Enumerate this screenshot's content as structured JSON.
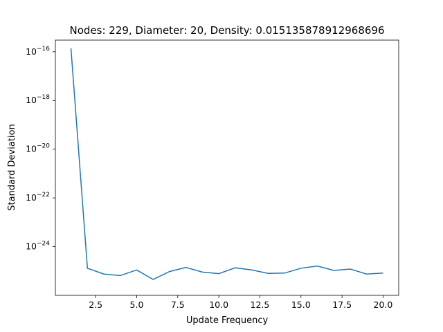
{
  "chart_data": {
    "type": "line",
    "title": "Nodes: 229, Diameter: 20, Density: 0.015135878912968696",
    "xlabel": "Update Frequency",
    "ylabel": "Standard Deviation",
    "x_scale": "linear",
    "y_scale": "log",
    "xlim": [
      0.05,
      20.95
    ],
    "ylim": [
      1e-26,
      3e-16
    ],
    "x_ticks": [
      2.5,
      5.0,
      7.5,
      10.0,
      12.5,
      15.0,
      17.5,
      20.0
    ],
    "x_tick_labels": [
      "2.5",
      "5.0",
      "7.5",
      "10.0",
      "12.5",
      "15.0",
      "17.5",
      "20.0"
    ],
    "y_ticks": [
      1e-24,
      1e-22,
      1e-20,
      1e-18,
      1e-16
    ],
    "y_tick_labels": [
      {
        "base": "10",
        "exp": "−24"
      },
      {
        "base": "10",
        "exp": "−22"
      },
      {
        "base": "10",
        "exp": "−20"
      },
      {
        "base": "10",
        "exp": "−18"
      },
      {
        "base": "10",
        "exp": "−16"
      }
    ],
    "grid": false,
    "line_color": "#1f77b4",
    "series": [
      {
        "x": [
          1,
          2,
          3,
          4,
          5,
          6,
          7,
          8,
          9,
          10,
          11,
          12,
          13,
          14,
          15,
          16,
          17,
          18,
          19,
          20
        ],
        "values": [
          1.4e-16,
          1.3e-25,
          7.5e-26,
          6.5e-26,
          1.1e-25,
          4.5e-26,
          9.5e-26,
          1.4e-25,
          9e-26,
          7.8e-26,
          1.35e-25,
          1.1e-25,
          8e-26,
          8.2e-26,
          1.3e-25,
          1.6e-25,
          1.05e-25,
          1.2e-25,
          7.5e-26,
          8.2e-26
        ]
      }
    ]
  }
}
